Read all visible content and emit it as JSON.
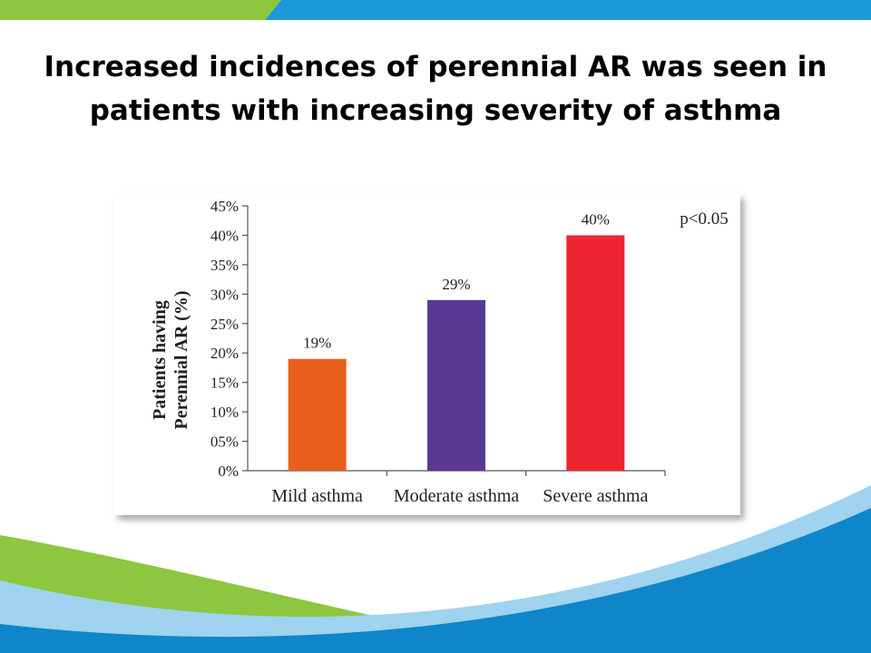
{
  "slide": {
    "title_line1": "Increased incidences of perennial AR was seen in",
    "title_line2": "patients with increasing severity of asthma"
  },
  "colors": {
    "top_stripe_blue": "#1a9ad6",
    "top_stripe_green": "#8dc63f",
    "bottom_wave_blue": "#0e86c9",
    "bottom_wave_green": "#8dc63f"
  },
  "chart_data": {
    "type": "bar",
    "categories": [
      "Mild asthma",
      "Moderate asthma",
      "Severe asthma"
    ],
    "values": [
      19,
      29,
      40
    ],
    "value_labels": [
      "19%",
      "29%",
      "40%"
    ],
    "bar_colors": [
      "#e8601c",
      "#5b3896",
      "#ee2530"
    ],
    "ylabel_line1": "Patients having",
    "ylabel_line2": "Perennial AR (%)",
    "ylim": [
      0,
      45
    ],
    "yticks": [
      0,
      5,
      10,
      15,
      20,
      25,
      30,
      35,
      40,
      45
    ],
    "ytick_labels": [
      "0%",
      "05%",
      "10%",
      "15%",
      "20%",
      "25%",
      "30%",
      "35%",
      "40%",
      "45%"
    ],
    "annotation": "p<0.05",
    "grid": false
  }
}
